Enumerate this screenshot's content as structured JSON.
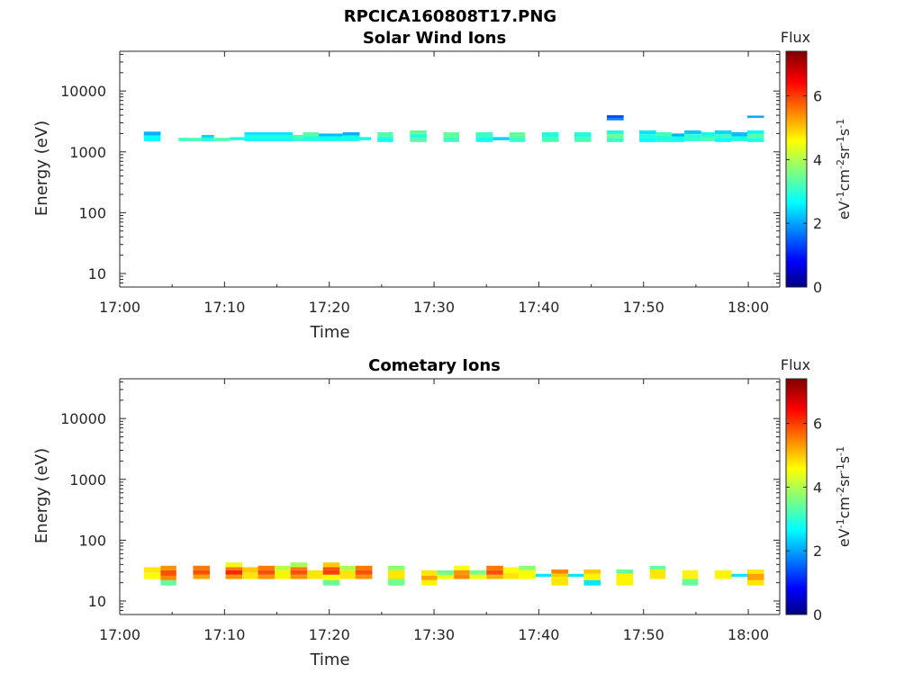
{
  "figure_title": "RPCICA160808T17.PNG",
  "chart_data": [
    {
      "type": "heatmap",
      "title": "Solar Wind Ions",
      "xlabel": "Time",
      "ylabel": "Energy (eV)",
      "x_ticks": [
        "17:00",
        "17:10",
        "17:20",
        "17:30",
        "17:40",
        "17:50",
        "18:00"
      ],
      "xlim_minutes": [
        0,
        63
      ],
      "y_scale": "log",
      "y_ticks": [
        10,
        100,
        1000,
        10000
      ],
      "y_tick_labels": [
        "10",
        "100",
        "1000",
        "10000"
      ],
      "ylim": [
        6,
        45000
      ],
      "colorbar": {
        "label": "Flux",
        "unit": "eV-1cm-2sr-1s-1",
        "ticks": [
          0,
          2,
          4,
          6
        ],
        "range": [
          0,
          7.4
        ],
        "colormap": "jet"
      },
      "cells": [
        {
          "t0": 2.3,
          "t1": 3.9,
          "e0": 1850,
          "e1": 2150,
          "v": 2.2
        },
        {
          "t0": 2.3,
          "t1": 3.9,
          "e0": 1500,
          "e1": 1850,
          "v": 2.8
        },
        {
          "t0": 5.6,
          "t1": 7.8,
          "e0": 1500,
          "e1": 1700,
          "v": 3.3
        },
        {
          "t0": 7.8,
          "t1": 9.0,
          "e0": 1700,
          "e1": 1900,
          "v": 2.5
        },
        {
          "t0": 7.8,
          "t1": 9.0,
          "e0": 1500,
          "e1": 1700,
          "v": 3.0
        },
        {
          "t0": 9.0,
          "t1": 10.5,
          "e0": 1500,
          "e1": 1700,
          "v": 3.4
        },
        {
          "t0": 10.5,
          "t1": 11.9,
          "e0": 1550,
          "e1": 1750,
          "v": 3.0
        },
        {
          "t0": 11.9,
          "t1": 16.5,
          "e0": 1900,
          "e1": 2100,
          "v": 2.6
        },
        {
          "t0": 11.9,
          "t1": 16.5,
          "e0": 1700,
          "e1": 1900,
          "v": 3.0
        },
        {
          "t0": 11.9,
          "t1": 16.5,
          "e0": 1500,
          "e1": 1700,
          "v": 2.8
        },
        {
          "t0": 16.5,
          "t1": 17.5,
          "e0": 1700,
          "e1": 1900,
          "v": 3.3
        },
        {
          "t0": 16.5,
          "t1": 17.5,
          "e0": 1500,
          "e1": 1700,
          "v": 3.1
        },
        {
          "t0": 17.5,
          "t1": 19.0,
          "e0": 1800,
          "e1": 2100,
          "v": 3.4
        },
        {
          "t0": 17.5,
          "t1": 19.0,
          "e0": 1500,
          "e1": 1800,
          "v": 3.0
        },
        {
          "t0": 19.0,
          "t1": 21.3,
          "e0": 1800,
          "e1": 2000,
          "v": 2.3
        },
        {
          "t0": 19.0,
          "t1": 21.3,
          "e0": 1500,
          "e1": 1800,
          "v": 2.9
        },
        {
          "t0": 21.3,
          "t1": 22.9,
          "e0": 1850,
          "e1": 2100,
          "v": 2.2
        },
        {
          "t0": 21.3,
          "t1": 22.9,
          "e0": 1500,
          "e1": 1850,
          "v": 2.9
        },
        {
          "t0": 22.9,
          "t1": 24.0,
          "e0": 1550,
          "e1": 1750,
          "v": 2.9
        },
        {
          "t0": 24.6,
          "t1": 26.1,
          "e0": 1750,
          "e1": 2100,
          "v": 3.4
        },
        {
          "t0": 24.6,
          "t1": 26.1,
          "e0": 1450,
          "e1": 1750,
          "v": 2.9
        },
        {
          "t0": 27.7,
          "t1": 29.3,
          "e0": 1950,
          "e1": 2250,
          "v": 3.5
        },
        {
          "t0": 27.7,
          "t1": 29.3,
          "e0": 1700,
          "e1": 1950,
          "v": 3.0
        },
        {
          "t0": 27.7,
          "t1": 29.3,
          "e0": 1450,
          "e1": 1700,
          "v": 3.4
        },
        {
          "t0": 30.9,
          "t1": 32.4,
          "e0": 1750,
          "e1": 2100,
          "v": 3.5
        },
        {
          "t0": 30.9,
          "t1": 32.4,
          "e0": 1450,
          "e1": 1750,
          "v": 3.2
        },
        {
          "t0": 34.0,
          "t1": 35.6,
          "e0": 1750,
          "e1": 2100,
          "v": 3.2
        },
        {
          "t0": 34.0,
          "t1": 35.6,
          "e0": 1450,
          "e1": 1750,
          "v": 2.9
        },
        {
          "t0": 35.6,
          "t1": 37.2,
          "e0": 1550,
          "e1": 1750,
          "v": 2.5
        },
        {
          "t0": 37.2,
          "t1": 38.7,
          "e0": 1750,
          "e1": 2100,
          "v": 3.5
        },
        {
          "t0": 37.2,
          "t1": 38.7,
          "e0": 1450,
          "e1": 1750,
          "v": 3.2
        },
        {
          "t0": 40.3,
          "t1": 41.9,
          "e0": 1750,
          "e1": 2100,
          "v": 3.0
        },
        {
          "t0": 40.3,
          "t1": 41.9,
          "e0": 1450,
          "e1": 1750,
          "v": 3.3
        },
        {
          "t0": 43.4,
          "t1": 45.0,
          "e0": 1750,
          "e1": 2100,
          "v": 3.0
        },
        {
          "t0": 43.4,
          "t1": 45.0,
          "e0": 1450,
          "e1": 1750,
          "v": 3.3
        },
        {
          "t0": 46.5,
          "t1": 48.1,
          "e0": 3600,
          "e1": 4000,
          "v": 1.5
        },
        {
          "t0": 46.5,
          "t1": 48.1,
          "e0": 3300,
          "e1": 3600,
          "v": 1.8
        },
        {
          "t0": 46.5,
          "t1": 48.1,
          "e0": 1950,
          "e1": 2250,
          "v": 3.0
        },
        {
          "t0": 46.5,
          "t1": 48.1,
          "e0": 1700,
          "e1": 1950,
          "v": 3.6
        },
        {
          "t0": 46.5,
          "t1": 48.1,
          "e0": 1450,
          "e1": 1700,
          "v": 3.2
        },
        {
          "t0": 49.6,
          "t1": 51.2,
          "e0": 1950,
          "e1": 2250,
          "v": 2.6
        },
        {
          "t0": 49.6,
          "t1": 51.2,
          "e0": 1700,
          "e1": 1950,
          "v": 3.0
        },
        {
          "t0": 49.6,
          "t1": 51.2,
          "e0": 1450,
          "e1": 1700,
          "v": 2.8
        },
        {
          "t0": 51.2,
          "t1": 52.7,
          "e0": 1800,
          "e1": 2100,
          "v": 3.3
        },
        {
          "t0": 51.2,
          "t1": 52.7,
          "e0": 1450,
          "e1": 1800,
          "v": 3.0
        },
        {
          "t0": 52.7,
          "t1": 53.9,
          "e0": 1800,
          "e1": 2000,
          "v": 2.2
        },
        {
          "t0": 52.7,
          "t1": 53.9,
          "e0": 1450,
          "e1": 1800,
          "v": 2.9
        },
        {
          "t0": 53.9,
          "t1": 55.5,
          "e0": 1950,
          "e1": 2250,
          "v": 2.4
        },
        {
          "t0": 53.9,
          "t1": 55.5,
          "e0": 1500,
          "e1": 1950,
          "v": 3.1
        },
        {
          "t0": 55.5,
          "t1": 56.8,
          "e0": 1800,
          "e1": 2100,
          "v": 2.9
        },
        {
          "t0": 55.5,
          "t1": 56.8,
          "e0": 1500,
          "e1": 1800,
          "v": 3.3
        },
        {
          "t0": 56.8,
          "t1": 58.4,
          "e0": 1950,
          "e1": 2250,
          "v": 2.5
        },
        {
          "t0": 56.8,
          "t1": 58.4,
          "e0": 1700,
          "e1": 1950,
          "v": 3.2
        },
        {
          "t0": 56.8,
          "t1": 58.4,
          "e0": 1450,
          "e1": 1700,
          "v": 2.9
        },
        {
          "t0": 58.4,
          "t1": 59.9,
          "e0": 1800,
          "e1": 2100,
          "v": 2.3
        },
        {
          "t0": 58.4,
          "t1": 59.9,
          "e0": 1500,
          "e1": 1800,
          "v": 3.0
        },
        {
          "t0": 59.9,
          "t1": 61.5,
          "e0": 3600,
          "e1": 3950,
          "v": 2.2
        },
        {
          "t0": 59.9,
          "t1": 61.5,
          "e0": 1950,
          "e1": 2250,
          "v": 2.8
        },
        {
          "t0": 59.9,
          "t1": 61.5,
          "e0": 1700,
          "e1": 1950,
          "v": 3.4
        },
        {
          "t0": 59.9,
          "t1": 61.5,
          "e0": 1450,
          "e1": 1700,
          "v": 3.0
        }
      ]
    },
    {
      "type": "heatmap",
      "title": "Cometary Ions",
      "xlabel": "Time",
      "ylabel": "Energy (eV)",
      "x_ticks": [
        "17:00",
        "17:10",
        "17:20",
        "17:30",
        "17:40",
        "17:50",
        "18:00"
      ],
      "xlim_minutes": [
        0,
        63
      ],
      "y_scale": "log",
      "y_ticks": [
        10,
        100,
        1000,
        10000
      ],
      "y_tick_labels": [
        "10",
        "100",
        "1000",
        "10000"
      ],
      "ylim": [
        6,
        45000
      ],
      "colorbar": {
        "label": "Flux",
        "unit": "eV-1cm-2sr-1s-1",
        "ticks": [
          0,
          2,
          4,
          6
        ],
        "range": [
          0,
          7.4
        ],
        "colormap": "jet"
      },
      "cells": [
        {
          "t0": 2.3,
          "t1": 3.9,
          "e0": 29,
          "e1": 36,
          "v": 4.8
        },
        {
          "t0": 2.3,
          "t1": 3.9,
          "e0": 23,
          "e1": 29,
          "v": 4.6
        },
        {
          "t0": 3.9,
          "t1": 5.4,
          "e0": 32,
          "e1": 38,
          "v": 5.4
        },
        {
          "t0": 3.9,
          "t1": 5.4,
          "e0": 26,
          "e1": 32,
          "v": 5.9
        },
        {
          "t0": 3.9,
          "t1": 5.4,
          "e0": 22,
          "e1": 26,
          "v": 5.5
        },
        {
          "t0": 3.9,
          "t1": 5.4,
          "e0": 18,
          "e1": 22,
          "v": 3.5
        },
        {
          "t0": 7.0,
          "t1": 8.6,
          "e0": 32,
          "e1": 38,
          "v": 5.6
        },
        {
          "t0": 7.0,
          "t1": 8.6,
          "e0": 27,
          "e1": 32,
          "v": 5.9
        },
        {
          "t0": 7.0,
          "t1": 8.6,
          "e0": 23,
          "e1": 27,
          "v": 5.3
        },
        {
          "t0": 10.1,
          "t1": 11.7,
          "e0": 36,
          "e1": 43,
          "v": 4.5
        },
        {
          "t0": 10.1,
          "t1": 11.7,
          "e0": 32,
          "e1": 36,
          "v": 5.6
        },
        {
          "t0": 10.1,
          "t1": 11.7,
          "e0": 27,
          "e1": 32,
          "v": 6.2
        },
        {
          "t0": 10.1,
          "t1": 11.7,
          "e0": 23,
          "e1": 27,
          "v": 5.4
        },
        {
          "t0": 11.7,
          "t1": 13.2,
          "e0": 29,
          "e1": 36,
          "v": 5.0
        },
        {
          "t0": 11.7,
          "t1": 13.2,
          "e0": 23,
          "e1": 29,
          "v": 4.8
        },
        {
          "t0": 13.2,
          "t1": 14.8,
          "e0": 32,
          "e1": 38,
          "v": 5.6
        },
        {
          "t0": 13.2,
          "t1": 14.8,
          "e0": 27,
          "e1": 32,
          "v": 5.9
        },
        {
          "t0": 13.2,
          "t1": 14.8,
          "e0": 23,
          "e1": 27,
          "v": 5.4
        },
        {
          "t0": 14.8,
          "t1": 16.3,
          "e0": 32,
          "e1": 38,
          "v": 4.1
        },
        {
          "t0": 14.8,
          "t1": 16.3,
          "e0": 23,
          "e1": 32,
          "v": 4.7
        },
        {
          "t0": 16.3,
          "t1": 17.9,
          "e0": 36,
          "e1": 43,
          "v": 4.0
        },
        {
          "t0": 16.3,
          "t1": 17.9,
          "e0": 32,
          "e1": 36,
          "v": 5.6
        },
        {
          "t0": 16.3,
          "t1": 17.9,
          "e0": 27,
          "e1": 32,
          "v": 5.9
        },
        {
          "t0": 16.3,
          "t1": 17.9,
          "e0": 23,
          "e1": 27,
          "v": 5.4
        },
        {
          "t0": 17.9,
          "t1": 19.4,
          "e0": 23,
          "e1": 32,
          "v": 4.8
        },
        {
          "t0": 19.4,
          "t1": 21.0,
          "e0": 36,
          "e1": 43,
          "v": 5.0
        },
        {
          "t0": 19.4,
          "t1": 21.0,
          "e0": 32,
          "e1": 36,
          "v": 5.9
        },
        {
          "t0": 19.4,
          "t1": 21.0,
          "e0": 27,
          "e1": 32,
          "v": 6.0
        },
        {
          "t0": 19.4,
          "t1": 21.0,
          "e0": 22,
          "e1": 27,
          "v": 4.6
        },
        {
          "t0": 19.4,
          "t1": 21.0,
          "e0": 18,
          "e1": 22,
          "v": 3.5
        },
        {
          "t0": 21.0,
          "t1": 22.5,
          "e0": 32,
          "e1": 38,
          "v": 4.0
        },
        {
          "t0": 21.0,
          "t1": 22.5,
          "e0": 23,
          "e1": 32,
          "v": 4.8
        },
        {
          "t0": 22.5,
          "t1": 24.1,
          "e0": 32,
          "e1": 38,
          "v": 5.6
        },
        {
          "t0": 22.5,
          "t1": 24.1,
          "e0": 27,
          "e1": 32,
          "v": 5.9
        },
        {
          "t0": 22.5,
          "t1": 24.1,
          "e0": 23,
          "e1": 27,
          "v": 5.4
        },
        {
          "t0": 25.6,
          "t1": 27.2,
          "e0": 32,
          "e1": 38,
          "v": 3.8
        },
        {
          "t0": 25.6,
          "t1": 27.2,
          "e0": 23,
          "e1": 32,
          "v": 4.8
        },
        {
          "t0": 25.6,
          "t1": 27.2,
          "e0": 18,
          "e1": 23,
          "v": 3.6
        },
        {
          "t0": 28.8,
          "t1": 30.3,
          "e0": 26,
          "e1": 32,
          "v": 4.8
        },
        {
          "t0": 28.8,
          "t1": 30.3,
          "e0": 22,
          "e1": 26,
          "v": 5.3
        },
        {
          "t0": 28.8,
          "t1": 30.3,
          "e0": 18,
          "e1": 22,
          "v": 4.7
        },
        {
          "t0": 30.3,
          "t1": 31.9,
          "e0": 27,
          "e1": 32,
          "v": 3.6
        },
        {
          "t0": 30.3,
          "t1": 31.9,
          "e0": 23,
          "e1": 27,
          "v": 4.5
        },
        {
          "t0": 31.9,
          "t1": 33.4,
          "e0": 32,
          "e1": 38,
          "v": 4.6
        },
        {
          "t0": 31.9,
          "t1": 33.4,
          "e0": 27,
          "e1": 32,
          "v": 5.4
        },
        {
          "t0": 31.9,
          "t1": 33.4,
          "e0": 23,
          "e1": 27,
          "v": 5.5
        },
        {
          "t0": 33.4,
          "t1": 35.0,
          "e0": 27,
          "e1": 32,
          "v": 3.7
        },
        {
          "t0": 33.4,
          "t1": 35.0,
          "e0": 23,
          "e1": 27,
          "v": 4.5
        },
        {
          "t0": 35.0,
          "t1": 36.6,
          "e0": 32,
          "e1": 38,
          "v": 5.6
        },
        {
          "t0": 35.0,
          "t1": 36.6,
          "e0": 27,
          "e1": 32,
          "v": 5.9
        },
        {
          "t0": 35.0,
          "t1": 36.6,
          "e0": 23,
          "e1": 27,
          "v": 5.2
        },
        {
          "t0": 36.6,
          "t1": 38.1,
          "e0": 29,
          "e1": 36,
          "v": 4.6
        },
        {
          "t0": 36.6,
          "t1": 38.1,
          "e0": 23,
          "e1": 29,
          "v": 4.8
        },
        {
          "t0": 38.1,
          "t1": 39.7,
          "e0": 32,
          "e1": 38,
          "v": 3.8
        },
        {
          "t0": 38.1,
          "t1": 39.7,
          "e0": 23,
          "e1": 32,
          "v": 4.6
        },
        {
          "t0": 39.7,
          "t1": 41.2,
          "e0": 25,
          "e1": 28,
          "v": 2.6
        },
        {
          "t0": 41.2,
          "t1": 42.8,
          "e0": 28,
          "e1": 33,
          "v": 5.5
        },
        {
          "t0": 41.2,
          "t1": 42.8,
          "e0": 25,
          "e1": 28,
          "v": 5.0
        },
        {
          "t0": 41.2,
          "t1": 42.8,
          "e0": 18,
          "e1": 25,
          "v": 4.8
        },
        {
          "t0": 42.8,
          "t1": 44.3,
          "e0": 25,
          "e1": 28,
          "v": 2.6
        },
        {
          "t0": 44.3,
          "t1": 45.9,
          "e0": 28,
          "e1": 33,
          "v": 5.0
        },
        {
          "t0": 44.3,
          "t1": 45.9,
          "e0": 22,
          "e1": 28,
          "v": 4.7
        },
        {
          "t0": 44.3,
          "t1": 45.9,
          "e0": 18,
          "e1": 22,
          "v": 2.6
        },
        {
          "t0": 47.4,
          "t1": 49.0,
          "e0": 28,
          "e1": 33,
          "v": 3.5
        },
        {
          "t0": 47.4,
          "t1": 49.0,
          "e0": 18,
          "e1": 28,
          "v": 4.7
        },
        {
          "t0": 50.6,
          "t1": 52.1,
          "e0": 33,
          "e1": 38,
          "v": 3.5
        },
        {
          "t0": 50.6,
          "t1": 52.1,
          "e0": 23,
          "e1": 33,
          "v": 4.8
        },
        {
          "t0": 53.7,
          "t1": 55.2,
          "e0": 23,
          "e1": 32,
          "v": 4.7
        },
        {
          "t0": 53.7,
          "t1": 55.2,
          "e0": 18,
          "e1": 23,
          "v": 3.5
        },
        {
          "t0": 56.8,
          "t1": 58.4,
          "e0": 23,
          "e1": 32,
          "v": 4.7
        },
        {
          "t0": 58.4,
          "t1": 59.9,
          "e0": 25,
          "e1": 28,
          "v": 2.6
        },
        {
          "t0": 59.9,
          "t1": 61.5,
          "e0": 28,
          "e1": 33,
          "v": 4.8
        },
        {
          "t0": 59.9,
          "t1": 61.5,
          "e0": 22,
          "e1": 28,
          "v": 5.3
        },
        {
          "t0": 59.9,
          "t1": 61.5,
          "e0": 18,
          "e1": 22,
          "v": 4.8
        }
      ]
    }
  ]
}
